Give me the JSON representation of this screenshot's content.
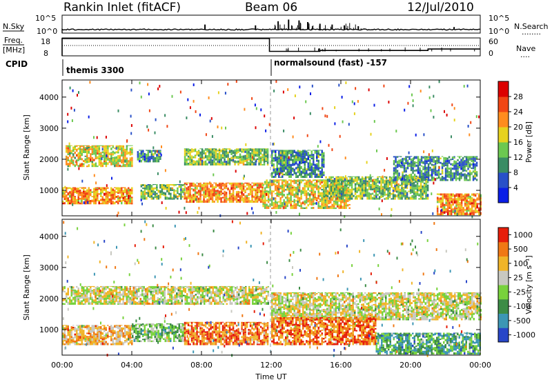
{
  "header": {
    "station": "Rankin Inlet (fitACF)",
    "beam": "Beam 06",
    "date": "12/Jul/2010"
  },
  "noise_panel": {
    "left_label": "N.Sky",
    "right_label": "N.Search",
    "right_legend": "........",
    "left_ticks": [
      "10^5",
      "10^0"
    ],
    "right_ticks": [
      "10^5",
      "10^0"
    ]
  },
  "freq_panel": {
    "left_label_line1": "Freq.",
    "left_label_line2": "[MHz]",
    "right_label": "Nave",
    "right_legend": "....",
    "left_ticks": [
      "18",
      "8"
    ],
    "right_ticks": [
      "60",
      "0"
    ]
  },
  "cpid": {
    "label": "CPID",
    "segments": [
      {
        "label": "themis 3300",
        "start_hour": 0
      },
      {
        "label": "normalsound (fast) -157",
        "start_hour": 12
      }
    ]
  },
  "axes": {
    "ylabel": "Slant Range [km]",
    "y_ticks": [
      "1000",
      "2000",
      "3000",
      "4000"
    ],
    "x_ticks": [
      "00:00",
      "04:00",
      "08:00",
      "12:00",
      "16:00",
      "20:00",
      "00:00"
    ],
    "xlabel": "Time UT"
  },
  "power_colorbar": {
    "label": "Power [dB]",
    "ticks": [
      "4",
      "8",
      "12",
      "16",
      "20",
      "24",
      "28"
    ],
    "colors": [
      "#0a1ee6",
      "#2850c8",
      "#3a8c64",
      "#6cc850",
      "#e6d21e",
      "#ff8c1e",
      "#f04614",
      "#dc0000"
    ]
  },
  "velocity_colorbar": {
    "label": "Velocity [m s⁻¹]",
    "ticks": [
      "1000",
      "500",
      "100",
      "25",
      "-25",
      "-100",
      "-500",
      "-1000"
    ],
    "colors": [
      "#2846c8",
      "#3c96b4",
      "#3c8c46",
      "#78d23c",
      "#c8c8c0",
      "#f0b428",
      "#f07814",
      "#e61e0a"
    ]
  },
  "chart_data": [
    {
      "type": "line",
      "title": "N.Sky / N.Search",
      "x_range_hours": [
        0,
        24
      ],
      "ylim_log10": [
        0,
        5
      ],
      "series": [
        {
          "name": "N.Sky",
          "level_log10": 1.0
        }
      ]
    },
    {
      "type": "line",
      "title": "Freq. / Nave",
      "x_range_hours": [
        0,
        24
      ],
      "series": [
        {
          "name": "Freq. [MHz]",
          "segments": [
            [
              0,
              11.9,
              17.7
            ],
            [
              11.9,
              14.8,
              10.5
            ],
            [
              14.8,
              21.0,
              11.0
            ],
            [
              21.0,
              24.0,
              11.8
            ]
          ]
        },
        {
          "name": "Nave",
          "value": 30
        }
      ]
    },
    {
      "type": "heatmap",
      "title": "Power [dB]",
      "xlabel": "Time UT",
      "ylabel": "Slant Range [km]",
      "x_range_hours": [
        0,
        24
      ],
      "ylim": [
        180,
        4550
      ],
      "bands": [
        {
          "t0": 0.0,
          "t1": 4.0,
          "r0": 550,
          "r1": 1100,
          "level": 5
        },
        {
          "t0": 0.2,
          "t1": 4.0,
          "r0": 1750,
          "r1": 2450,
          "level": 4
        },
        {
          "t0": 4.3,
          "t1": 5.6,
          "r0": 1900,
          "r1": 2300,
          "level": 2
        },
        {
          "t0": 4.5,
          "t1": 7.0,
          "r0": 700,
          "r1": 1200,
          "level": 3
        },
        {
          "t0": 7.0,
          "t1": 11.5,
          "r0": 600,
          "r1": 1250,
          "level": 5
        },
        {
          "t0": 7.0,
          "t1": 11.8,
          "r0": 1800,
          "r1": 2350,
          "level": 3
        },
        {
          "t0": 11.5,
          "t1": 16.5,
          "r0": 400,
          "r1": 1350,
          "level": 4
        },
        {
          "t0": 12.0,
          "t1": 15.0,
          "r0": 1400,
          "r1": 2300,
          "level": 2
        },
        {
          "t0": 15.0,
          "t1": 21.0,
          "r0": 700,
          "r1": 1450,
          "level": 3
        },
        {
          "t0": 19.0,
          "t1": 23.8,
          "r0": 1300,
          "r1": 2100,
          "level": 2
        },
        {
          "t0": 21.5,
          "t1": 24.0,
          "r0": 200,
          "r1": 900,
          "level": 5
        }
      ]
    },
    {
      "type": "heatmap",
      "title": "Velocity [m s⁻¹]",
      "xlabel": "Time UT",
      "ylabel": "Slant Range [km]",
      "x_range_hours": [
        0,
        24
      ],
      "ylim": [
        180,
        4550
      ],
      "bands": [
        {
          "t0": 0.0,
          "t1": 11.8,
          "r0": 1800,
          "r1": 2400,
          "level": 4
        },
        {
          "t0": 0.0,
          "t1": 4.0,
          "r0": 500,
          "r1": 1150,
          "level": 5
        },
        {
          "t0": 4.0,
          "t1": 7.0,
          "r0": 600,
          "r1": 1200,
          "level": 3
        },
        {
          "t0": 7.0,
          "t1": 11.8,
          "r0": 500,
          "r1": 1250,
          "level": 6
        },
        {
          "t0": 12.0,
          "t1": 24.0,
          "r0": 1300,
          "r1": 2200,
          "level": 4
        },
        {
          "t0": 12.0,
          "t1": 18.0,
          "r0": 500,
          "r1": 1400,
          "level": 6
        },
        {
          "t0": 18.0,
          "t1": 24.0,
          "r0": 200,
          "r1": 900,
          "level": 2
        }
      ]
    }
  ]
}
